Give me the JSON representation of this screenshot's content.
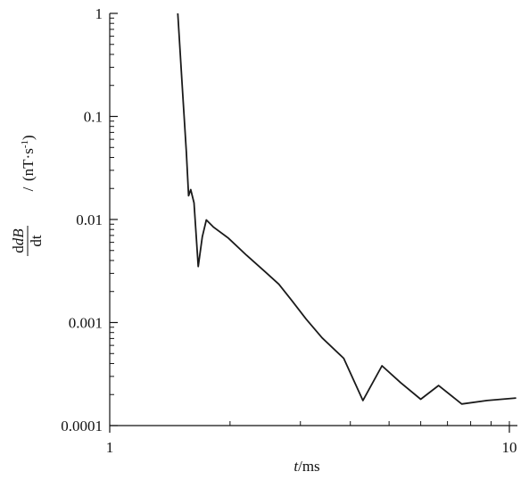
{
  "chart_data": {
    "type": "line",
    "title": "",
    "xlabel": {
      "symbol": "t",
      "unit": "ms"
    },
    "ylabel": {
      "numerator_symbol": "dB",
      "denominator_symbol": "dt",
      "unit_open": "(nT·s",
      "unit_sup": "-1",
      "unit_close": ")"
    },
    "x_scale": "log",
    "y_scale": "log",
    "xlim": [
      1,
      10.4
    ],
    "ylim": [
      0.0001,
      1
    ],
    "grid": false,
    "x_ticks": [
      {
        "value": 1,
        "label": "1"
      },
      {
        "value": 10,
        "label": "10"
      }
    ],
    "y_ticks": [
      {
        "value": 1,
        "label": "1"
      },
      {
        "value": 0.1,
        "label": "0.1"
      },
      {
        "value": 0.01,
        "label": "0.01"
      },
      {
        "value": 0.001,
        "label": "0.001"
      },
      {
        "value": 0.0001,
        "label": "0.0001"
      }
    ],
    "series": [
      {
        "color": "#1a1a1a",
        "points": [
          [
            1.48,
            1.0
          ],
          [
            1.515,
            0.23
          ],
          [
            1.555,
            0.045
          ],
          [
            1.575,
            0.017
          ],
          [
            1.595,
            0.0195
          ],
          [
            1.625,
            0.0145
          ],
          [
            1.665,
            0.0035
          ],
          [
            1.705,
            0.0068
          ],
          [
            1.745,
            0.0099
          ],
          [
            1.82,
            0.0084
          ],
          [
            1.98,
            0.0066
          ],
          [
            2.2,
            0.0045
          ],
          [
            2.45,
            0.0031
          ],
          [
            2.65,
            0.00235
          ],
          [
            2.85,
            0.00165
          ],
          [
            3.1,
            0.00108
          ],
          [
            3.4,
            0.00071
          ],
          [
            3.85,
            0.00045
          ],
          [
            4.3,
            0.000175
          ],
          [
            4.8,
            0.00038
          ],
          [
            5.35,
            0.00026
          ],
          [
            6.0,
            0.00018
          ],
          [
            6.65,
            0.000245
          ],
          [
            7.6,
            0.000162
          ],
          [
            8.8,
            0.000175
          ],
          [
            10.4,
            0.000185
          ]
        ]
      }
    ]
  }
}
